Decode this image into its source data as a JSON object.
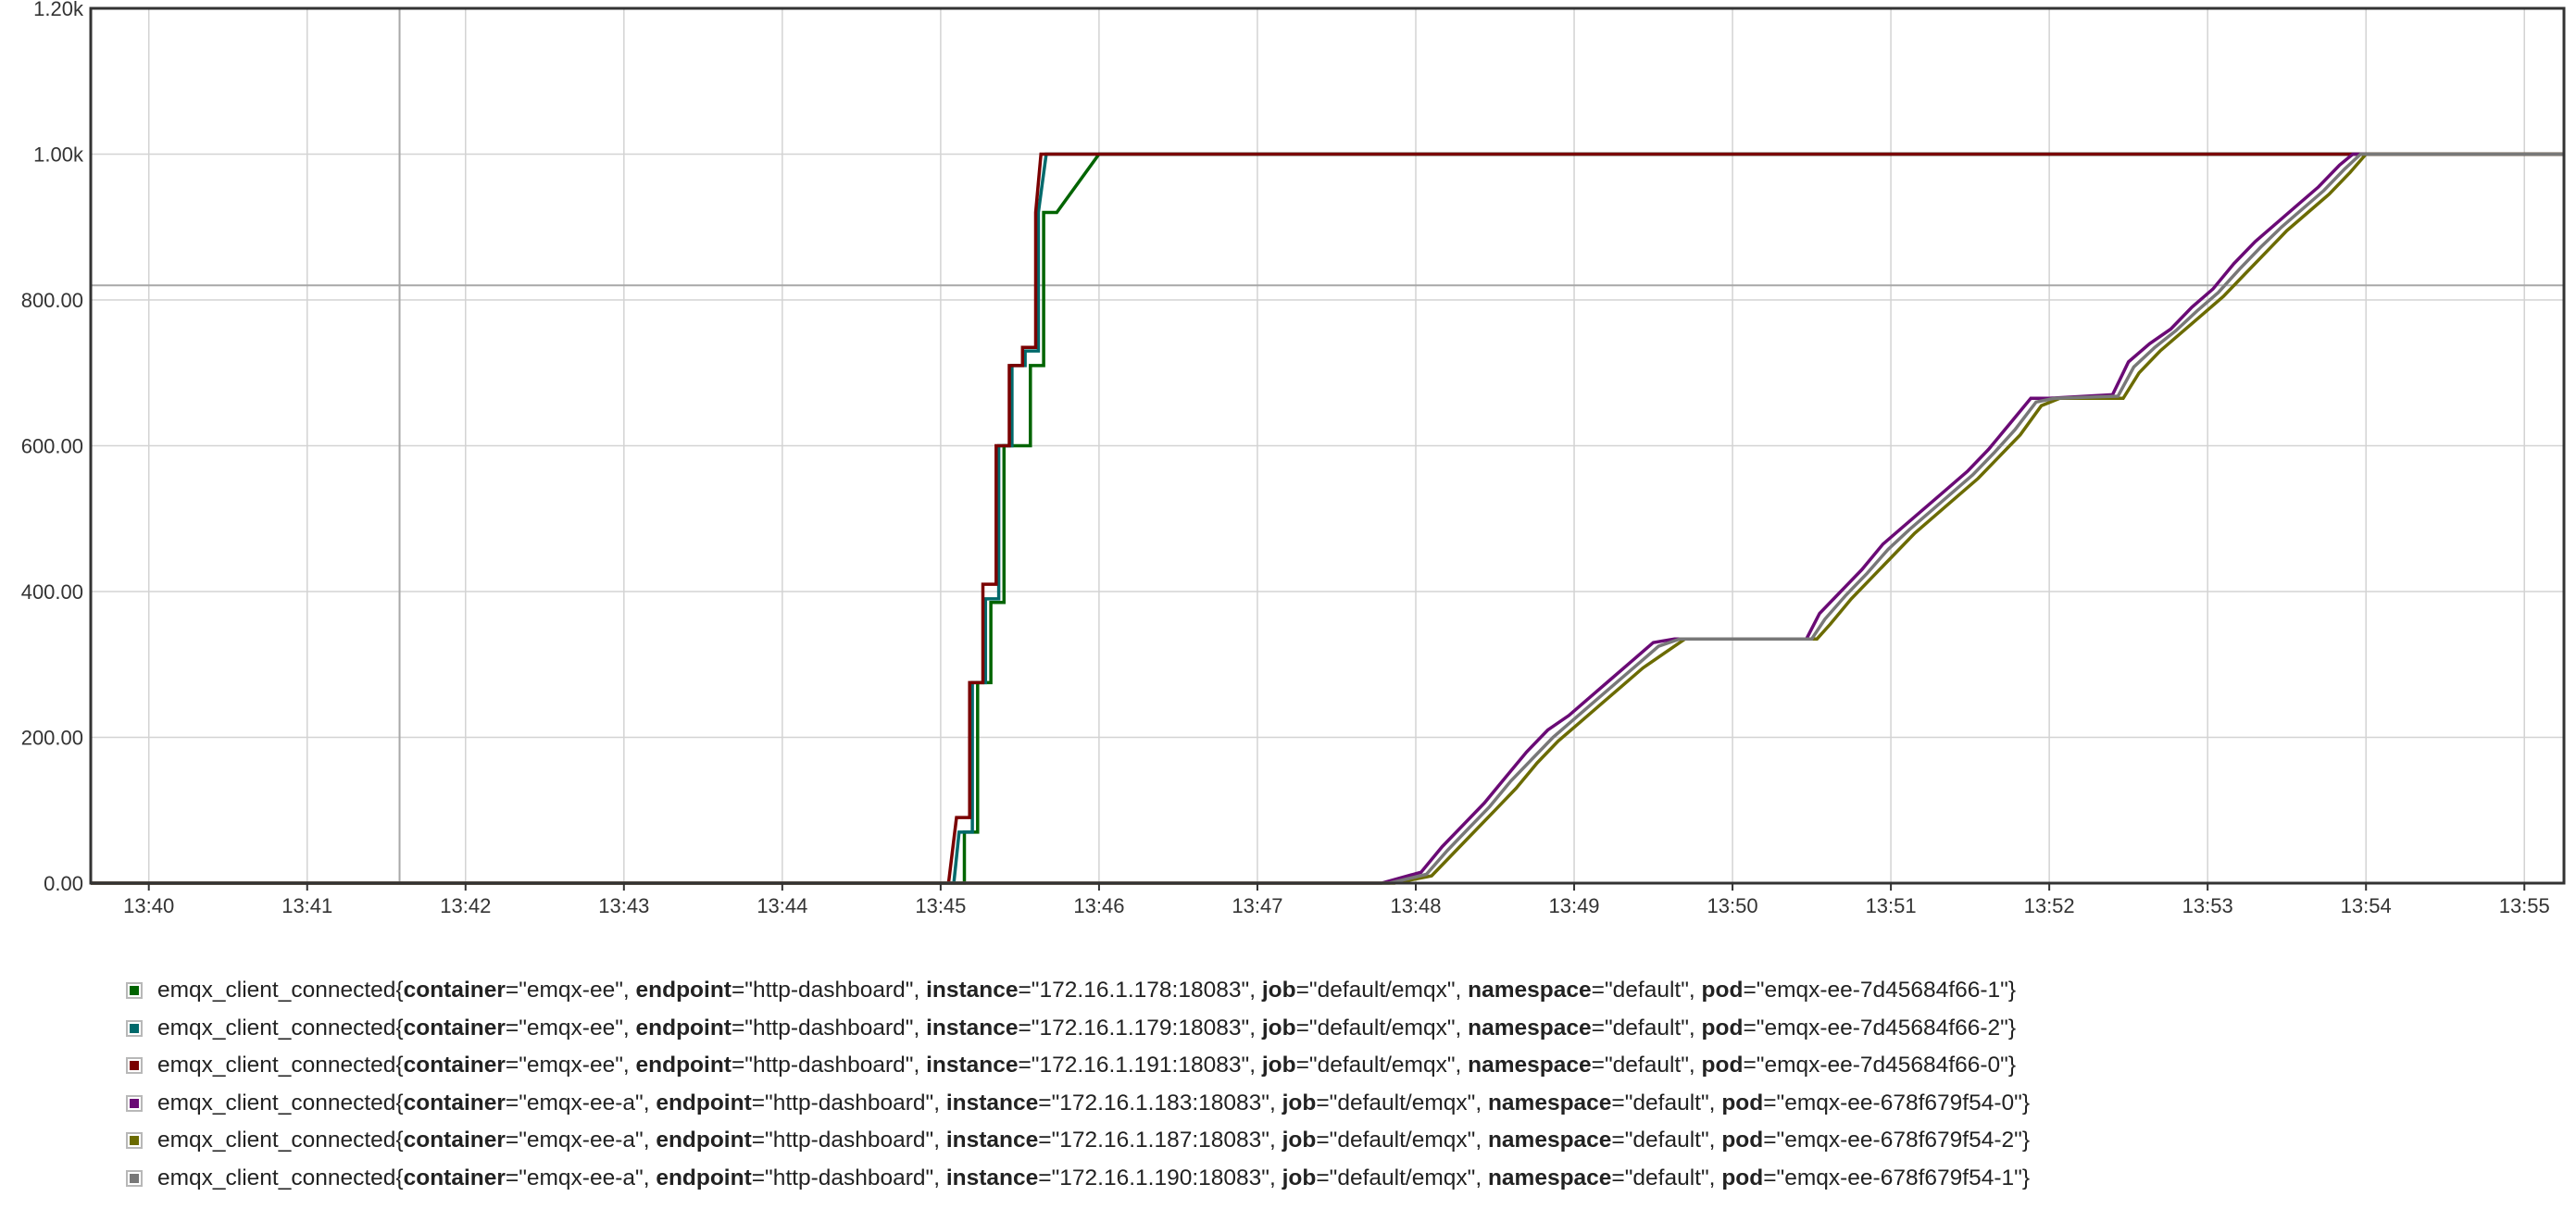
{
  "chart_data": {
    "type": "line",
    "x_type": "time",
    "xlim": [
      "13:39:38",
      "13:55:15"
    ],
    "x_ticks": [
      "13:40",
      "13:41",
      "13:42",
      "13:43",
      "13:44",
      "13:45",
      "13:46",
      "13:47",
      "13:48",
      "13:49",
      "13:50",
      "13:51",
      "13:52",
      "13:53",
      "13:54",
      "13:55"
    ],
    "ylim": [
      0,
      1200
    ],
    "y_ticks": [
      {
        "value": 0,
        "label": "0.00"
      },
      {
        "value": 200,
        "label": "200.00"
      },
      {
        "value": 400,
        "label": "400.00"
      },
      {
        "value": 600,
        "label": "600.00"
      },
      {
        "value": 800,
        "label": "800.00"
      },
      {
        "value": 1000,
        "label": "1.00k"
      },
      {
        "value": 1200,
        "label": "1.20k"
      }
    ],
    "grid": true,
    "crosshair": {
      "x": "13:41:35",
      "y": 820
    },
    "legend_position": "bottom",
    "metric": "emqx_client_connected",
    "series": [
      {
        "name": "emqx_client_connected{container=\"emqx-ee\", endpoint=\"http-dashboard\", instance=\"172.16.1.178:18083\", job=\"default/emqx\", namespace=\"default\", pod=\"emqx-ee-7d45684f66-1\"}",
        "labels": [
          [
            "container",
            "emqx-ee"
          ],
          [
            "endpoint",
            "http-dashboard"
          ],
          [
            "instance",
            "172.16.1.178:18083"
          ],
          [
            "job",
            "default/emqx"
          ],
          [
            "namespace",
            "default"
          ],
          [
            "pod",
            "emqx-ee-7d45684f66-1"
          ]
        ],
        "color": "#006400",
        "x": [
          "13:39:38",
          "13:45:09",
          "13:45:09",
          "13:45:14",
          "13:45:14",
          "13:45:19",
          "13:45:19",
          "13:45:24",
          "13:45:24",
          "13:45:29",
          "13:45:29",
          "13:45:34",
          "13:45:34",
          "13:45:39",
          "13:45:39",
          "13:45:44",
          "13:46:00",
          "13:55:15"
        ],
        "y": [
          0,
          0,
          70,
          70,
          275,
          275,
          385,
          385,
          600,
          600,
          600,
          600,
          710,
          710,
          920,
          920,
          1000,
          1000
        ]
      },
      {
        "name": "emqx_client_connected{container=\"emqx-ee\", endpoint=\"http-dashboard\", instance=\"172.16.1.179:18083\", job=\"default/emqx\", namespace=\"default\", pod=\"emqx-ee-7d45684f66-2\"}",
        "labels": [
          [
            "container",
            "emqx-ee"
          ],
          [
            "endpoint",
            "http-dashboard"
          ],
          [
            "instance",
            "172.16.1.179:18083"
          ],
          [
            "job",
            "default/emqx"
          ],
          [
            "namespace",
            "default"
          ],
          [
            "pod",
            "emqx-ee-7d45684f66-2"
          ]
        ],
        "color": "#00696b",
        "x": [
          "13:39:38",
          "13:45:05",
          "13:45:07",
          "13:45:12",
          "13:45:12",
          "13:45:17",
          "13:45:17",
          "13:45:22",
          "13:45:22",
          "13:45:27",
          "13:45:27",
          "13:45:32",
          "13:45:32",
          "13:45:37",
          "13:45:37",
          "13:45:40",
          "13:55:15"
        ],
        "y": [
          0,
          0,
          70,
          70,
          275,
          275,
          390,
          390,
          600,
          600,
          710,
          710,
          730,
          730,
          920,
          1000,
          1000
        ]
      },
      {
        "name": "emqx_client_connected{container=\"emqx-ee\", endpoint=\"http-dashboard\", instance=\"172.16.1.191:18083\", job=\"default/emqx\", namespace=\"default\", pod=\"emqx-ee-7d45684f66-0\"}",
        "labels": [
          [
            "container",
            "emqx-ee"
          ],
          [
            "endpoint",
            "http-dashboard"
          ],
          [
            "instance",
            "172.16.1.191:18083"
          ],
          [
            "job",
            "default/emqx"
          ],
          [
            "namespace",
            "default"
          ],
          [
            "pod",
            "emqx-ee-7d45684f66-0"
          ]
        ],
        "color": "#7a0000",
        "x": [
          "13:39:38",
          "13:45:03",
          "13:45:06",
          "13:45:11",
          "13:45:11",
          "13:45:16",
          "13:45:16",
          "13:45:21",
          "13:45:21",
          "13:45:26",
          "13:45:26",
          "13:45:31",
          "13:45:31",
          "13:45:36",
          "13:45:36",
          "13:45:38",
          "13:55:15"
        ],
        "y": [
          0,
          0,
          90,
          90,
          275,
          275,
          410,
          410,
          600,
          600,
          710,
          710,
          735,
          735,
          920,
          1000,
          1000
        ]
      },
      {
        "name": "emqx_client_connected{container=\"emqx-ee-a\", endpoint=\"http-dashboard\", instance=\"172.16.1.183:18083\", job=\"default/emqx\", namespace=\"default\", pod=\"emqx-ee-678f679f54-0\"}",
        "labels": [
          [
            "container",
            "emqx-ee-a"
          ],
          [
            "endpoint",
            "http-dashboard"
          ],
          [
            "instance",
            "172.16.1.183:18083"
          ],
          [
            "job",
            "default/emqx"
          ],
          [
            "namespace",
            "default"
          ],
          [
            "pod",
            "emqx-ee-678f679f54-0"
          ]
        ],
        "color": "#6a0a75",
        "x": [
          "13:39:38",
          "13:47:47",
          "13:48:02",
          "13:48:10",
          "13:48:18",
          "13:48:26",
          "13:48:34",
          "13:48:42",
          "13:48:50",
          "13:48:58",
          "13:49:06",
          "13:49:14",
          "13:49:22",
          "13:49:30",
          "13:49:38",
          "13:50:28",
          "13:50:33",
          "13:50:41",
          "13:50:49",
          "13:50:57",
          "13:51:05",
          "13:51:13",
          "13:51:21",
          "13:51:29",
          "13:51:37",
          "13:51:45",
          "13:51:53",
          "13:52:00",
          "13:52:24",
          "13:52:30",
          "13:52:38",
          "13:52:46",
          "13:52:54",
          "13:53:02",
          "13:53:10",
          "13:53:18",
          "13:53:26",
          "13:53:34",
          "13:53:42",
          "13:53:50",
          "13:53:55",
          "13:55:15"
        ],
        "y": [
          0,
          0,
          15,
          50,
          80,
          110,
          145,
          180,
          210,
          230,
          255,
          280,
          305,
          330,
          335,
          335,
          370,
          400,
          430,
          465,
          490,
          515,
          540,
          565,
          595,
          630,
          665,
          665,
          670,
          715,
          740,
          760,
          790,
          815,
          850,
          880,
          905,
          930,
          955,
          985,
          1000,
          1000
        ]
      },
      {
        "name": "emqx_client_connected{container=\"emqx-ee-a\", endpoint=\"http-dashboard\", instance=\"172.16.1.187:18083\", job=\"default/emqx\", namespace=\"default\", pod=\"emqx-ee-678f679f54-2\"}",
        "labels": [
          [
            "container",
            "emqx-ee-a"
          ],
          [
            "endpoint",
            "http-dashboard"
          ],
          [
            "instance",
            "172.16.1.187:18083"
          ],
          [
            "job",
            "default/emqx"
          ],
          [
            "namespace",
            "default"
          ],
          [
            "pod",
            "emqx-ee-678f679f54-2"
          ]
        ],
        "color": "#6b6b00",
        "x": [
          "13:39:38",
          "13:47:52",
          "13:48:06",
          "13:48:14",
          "13:48:22",
          "13:48:30",
          "13:48:38",
          "13:48:46",
          "13:48:54",
          "13:49:02",
          "13:49:10",
          "13:49:18",
          "13:49:26",
          "13:49:34",
          "13:49:42",
          "13:50:32",
          "13:50:37",
          "13:50:45",
          "13:50:53",
          "13:51:01",
          "13:51:09",
          "13:51:17",
          "13:51:25",
          "13:51:33",
          "13:51:41",
          "13:51:49",
          "13:51:57",
          "13:52:04",
          "13:52:28",
          "13:52:34",
          "13:52:42",
          "13:52:50",
          "13:52:58",
          "13:53:06",
          "13:53:14",
          "13:53:22",
          "13:53:30",
          "13:53:38",
          "13:53:46",
          "13:53:54",
          "13:54:00",
          "13:55:15"
        ],
        "y": [
          0,
          0,
          10,
          40,
          70,
          100,
          130,
          165,
          195,
          220,
          245,
          270,
          295,
          315,
          335,
          335,
          355,
          390,
          420,
          450,
          480,
          505,
          530,
          555,
          585,
          615,
          655,
          665,
          665,
          700,
          730,
          755,
          780,
          805,
          835,
          865,
          895,
          920,
          945,
          975,
          1000,
          1000
        ]
      },
      {
        "name": "emqx_client_connected{container=\"emqx-ee-a\", endpoint=\"http-dashboard\", instance=\"172.16.1.190:18083\", job=\"default/emqx\", namespace=\"default\", pod=\"emqx-ee-678f679f54-1\"}",
        "labels": [
          [
            "container",
            "emqx-ee-a"
          ],
          [
            "endpoint",
            "http-dashboard"
          ],
          [
            "instance",
            "172.16.1.190:18083"
          ],
          [
            "job",
            "default/emqx"
          ],
          [
            "namespace",
            "default"
          ],
          [
            "pod",
            "emqx-ee-678f679f54-1"
          ]
        ],
        "color": "#787878",
        "x": [
          "13:39:38",
          "13:47:50",
          "13:48:04",
          "13:48:12",
          "13:48:20",
          "13:48:28",
          "13:48:36",
          "13:48:44",
          "13:48:52",
          "13:49:00",
          "13:49:08",
          "13:49:16",
          "13:49:24",
          "13:49:32",
          "13:49:40",
          "13:50:30",
          "13:50:35",
          "13:50:43",
          "13:50:51",
          "13:50:59",
          "13:51:07",
          "13:51:15",
          "13:51:23",
          "13:51:31",
          "13:51:39",
          "13:51:47",
          "13:51:55",
          "13:52:02",
          "13:52:26",
          "13:52:32",
          "13:52:40",
          "13:52:48",
          "13:52:56",
          "13:53:04",
          "13:53:12",
          "13:53:20",
          "13:53:28",
          "13:53:36",
          "13:53:44",
          "13:53:52",
          "13:53:58",
          "13:55:15"
        ],
        "y": [
          0,
          0,
          12,
          45,
          75,
          105,
          140,
          170,
          200,
          225,
          250,
          275,
          300,
          325,
          335,
          335,
          362,
          395,
          425,
          458,
          485,
          510,
          535,
          560,
          590,
          622,
          660,
          665,
          668,
          708,
          735,
          758,
          785,
          810,
          842,
          872,
          900,
          925,
          950,
          980,
          1000,
          1000
        ]
      }
    ]
  }
}
